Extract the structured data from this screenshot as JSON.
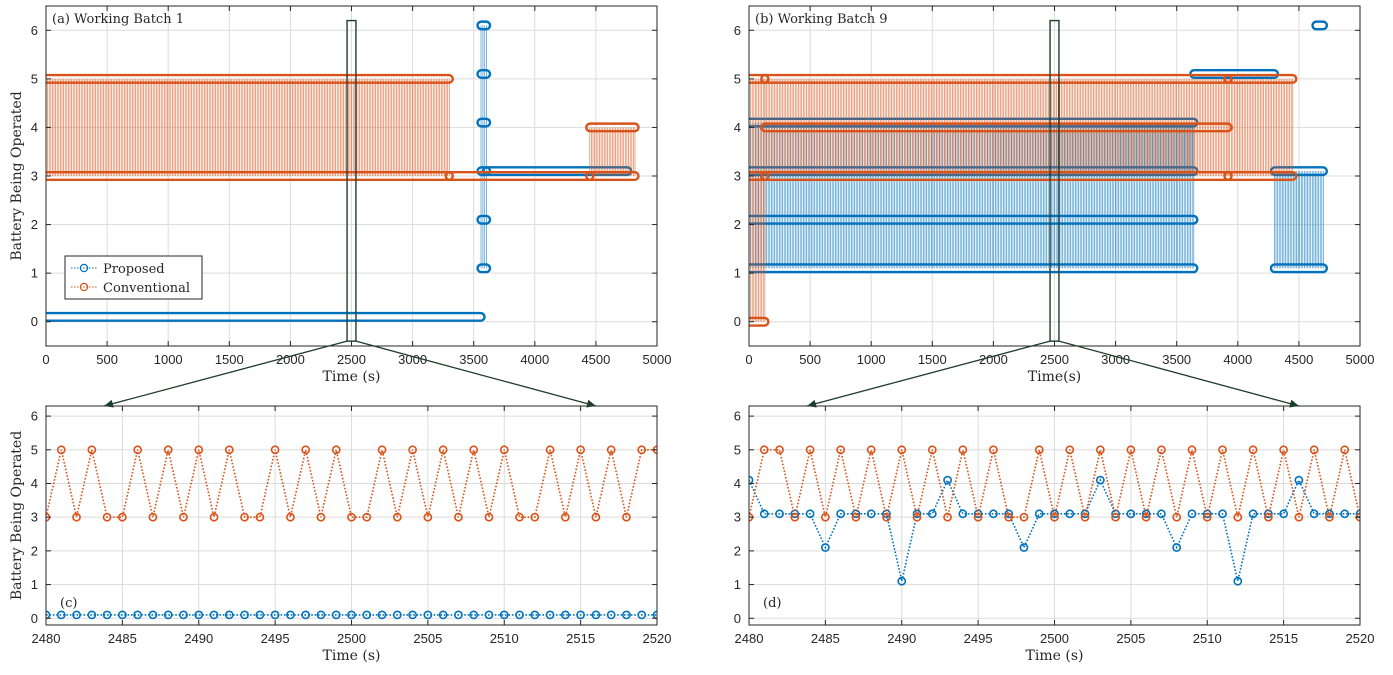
{
  "colors": {
    "proposed": "#0072bd",
    "conventional": "#d95319",
    "axis": "#262626",
    "grid": "#dcdcdc",
    "zoom": "#1f3d2b"
  },
  "legend": {
    "placement": "lower-left of panel (a)",
    "entries": [
      "Proposed",
      "Conventional"
    ]
  },
  "chart_data": [
    {
      "id": "a",
      "type": "scatter",
      "title": "(a) Working Batch 1",
      "xlabel": "Time (s)",
      "ylabel": "Battery Being Operated",
      "xlim": [
        0,
        5000
      ],
      "ylim": [
        -0.5,
        6.5
      ],
      "xticks": [
        0,
        500,
        1000,
        1500,
        2000,
        2500,
        3000,
        3500,
        4000,
        4500,
        5000
      ],
      "yticks": [
        0,
        1,
        2,
        3,
        4,
        5,
        6
      ],
      "grid": true,
      "zoom_window": {
        "x": [
          2480,
          2520
        ],
        "y": [
          -0.4,
          6.2
        ]
      },
      "series": [
        {
          "name": "Proposed",
          "segments": [
            {
              "t": [
                0,
                3560
              ],
              "levels": [
                0.1
              ]
            },
            {
              "t": [
                3560,
                3605
              ],
              "levels": [
                1.1,
                2.1,
                3.1,
                4.1,
                5.1,
                6.1
              ]
            },
            {
              "t": [
                3605,
                4760
              ],
              "levels": [
                3.1
              ]
            }
          ]
        },
        {
          "name": "Conventional",
          "segments": [
            {
              "t": [
                0,
                3300
              ],
              "levels": [
                3,
                5
              ]
            },
            {
              "t": [
                3300,
                4450
              ],
              "levels": [
                3
              ]
            },
            {
              "t": [
                4450,
                4820
              ],
              "levels": [
                3,
                4
              ]
            }
          ]
        }
      ]
    },
    {
      "id": "b",
      "type": "scatter",
      "title": "(b) Working Batch 9",
      "xlabel": "Time(s)",
      "ylabel": "",
      "xlim": [
        0,
        5000
      ],
      "ylim": [
        -0.5,
        6.5
      ],
      "xticks": [
        0,
        500,
        1000,
        1500,
        2000,
        2500,
        3000,
        3500,
        4000,
        4500,
        5000
      ],
      "yticks": [
        0,
        1,
        2,
        3,
        4,
        5,
        6
      ],
      "grid": true,
      "zoom_window": {
        "x": [
          2480,
          2520
        ],
        "y": [
          -0.4,
          6.2
        ]
      },
      "series": [
        {
          "name": "Proposed",
          "segments": [
            {
              "t": [
                0,
                3640
              ],
              "levels": [
                1.1,
                2.1,
                3.1,
                4.1
              ]
            },
            {
              "t": [
                3640,
                4300
              ],
              "levels": [
                5.1
              ]
            },
            {
              "t": [
                4300,
                4700
              ],
              "levels": [
                1.1,
                3.1
              ]
            },
            {
              "t": [
                4640,
                4700
              ],
              "levels": [
                6.1
              ]
            }
          ]
        },
        {
          "name": "Conventional",
          "segments": [
            {
              "t": [
                0,
                130
              ],
              "levels": [
                0,
                3,
                5
              ]
            },
            {
              "t": [
                130,
                3920
              ],
              "levels": [
                3,
                4,
                5
              ]
            },
            {
              "t": [
                3920,
                4450
              ],
              "levels": [
                3,
                5
              ]
            }
          ]
        }
      ]
    },
    {
      "id": "c",
      "type": "line",
      "title": "(c)",
      "xlabel": "Time (s)",
      "ylabel": "Battery Being Operated",
      "xlim": [
        2480,
        2520
      ],
      "ylim": [
        -0.2,
        6.3
      ],
      "xticks": [
        2480,
        2485,
        2490,
        2495,
        2500,
        2505,
        2510,
        2515,
        2520
      ],
      "yticks": [
        0,
        1,
        2,
        3,
        4,
        5,
        6
      ],
      "grid": true,
      "x": [
        2480,
        2481,
        2482,
        2483,
        2484,
        2485,
        2486,
        2487,
        2488,
        2489,
        2490,
        2491,
        2492,
        2493,
        2494,
        2495,
        2496,
        2497,
        2498,
        2499,
        2500,
        2501,
        2502,
        2503,
        2504,
        2505,
        2506,
        2507,
        2508,
        2509,
        2510,
        2511,
        2512,
        2513,
        2514,
        2515,
        2516,
        2517,
        2518,
        2519,
        2520
      ],
      "series": [
        {
          "name": "Proposed",
          "values": [
            0.1,
            0.1,
            0.1,
            0.1,
            0.1,
            0.1,
            0.1,
            0.1,
            0.1,
            0.1,
            0.1,
            0.1,
            0.1,
            0.1,
            0.1,
            0.1,
            0.1,
            0.1,
            0.1,
            0.1,
            0.1,
            0.1,
            0.1,
            0.1,
            0.1,
            0.1,
            0.1,
            0.1,
            0.1,
            0.1,
            0.1,
            0.1,
            0.1,
            0.1,
            0.1,
            0.1,
            0.1,
            0.1,
            0.1,
            0.1,
            0.1
          ]
        },
        {
          "name": "Conventional",
          "values": [
            3,
            5,
            3,
            5,
            3,
            3,
            5,
            3,
            5,
            3,
            5,
            3,
            5,
            3,
            3,
            5,
            3,
            5,
            3,
            5,
            3,
            3,
            5,
            3,
            5,
            3,
            5,
            3,
            5,
            3,
            5,
            3,
            3,
            5,
            3,
            5,
            3,
            5,
            3,
            5,
            5
          ]
        }
      ]
    },
    {
      "id": "d",
      "type": "line",
      "title": "(d)",
      "xlabel": "Time (s)",
      "ylabel": "",
      "xlim": [
        2480,
        2520
      ],
      "ylim": [
        -0.2,
        6.3
      ],
      "xticks": [
        2480,
        2485,
        2490,
        2495,
        2500,
        2505,
        2510,
        2515,
        2520
      ],
      "yticks": [
        0,
        1,
        2,
        3,
        4,
        5,
        6
      ],
      "grid": true,
      "x": [
        2480,
        2481,
        2482,
        2483,
        2484,
        2485,
        2486,
        2487,
        2488,
        2489,
        2490,
        2491,
        2492,
        2493,
        2494,
        2495,
        2496,
        2497,
        2498,
        2499,
        2500,
        2501,
        2502,
        2503,
        2504,
        2505,
        2506,
        2507,
        2508,
        2509,
        2510,
        2511,
        2512,
        2513,
        2514,
        2515,
        2516,
        2517,
        2518,
        2519,
        2520
      ],
      "series": [
        {
          "name": "Proposed",
          "values": [
            4.1,
            3.1,
            3.1,
            3.1,
            3.1,
            2.1,
            3.1,
            3.1,
            3.1,
            3.1,
            1.1,
            3.1,
            3.1,
            4.1,
            3.1,
            3.1,
            3.1,
            3.1,
            2.1,
            3.1,
            3.1,
            3.1,
            3.1,
            4.1,
            3.1,
            3.1,
            3.1,
            3.1,
            2.1,
            3.1,
            3.1,
            3.1,
            1.1,
            3.1,
            3.1,
            3.1,
            4.1,
            3.1,
            3.1,
            3.1,
            3.1
          ]
        },
        {
          "name": "Conventional",
          "values": [
            3,
            5,
            5,
            3,
            5,
            3,
            5,
            3,
            5,
            3,
            5,
            3,
            5,
            3,
            5,
            3,
            5,
            3,
            3,
            5,
            3,
            5,
            3,
            5,
            3,
            5,
            3,
            5,
            3,
            5,
            3,
            5,
            3,
            5,
            3,
            5,
            3,
            5,
            3,
            5,
            3
          ]
        }
      ]
    }
  ]
}
